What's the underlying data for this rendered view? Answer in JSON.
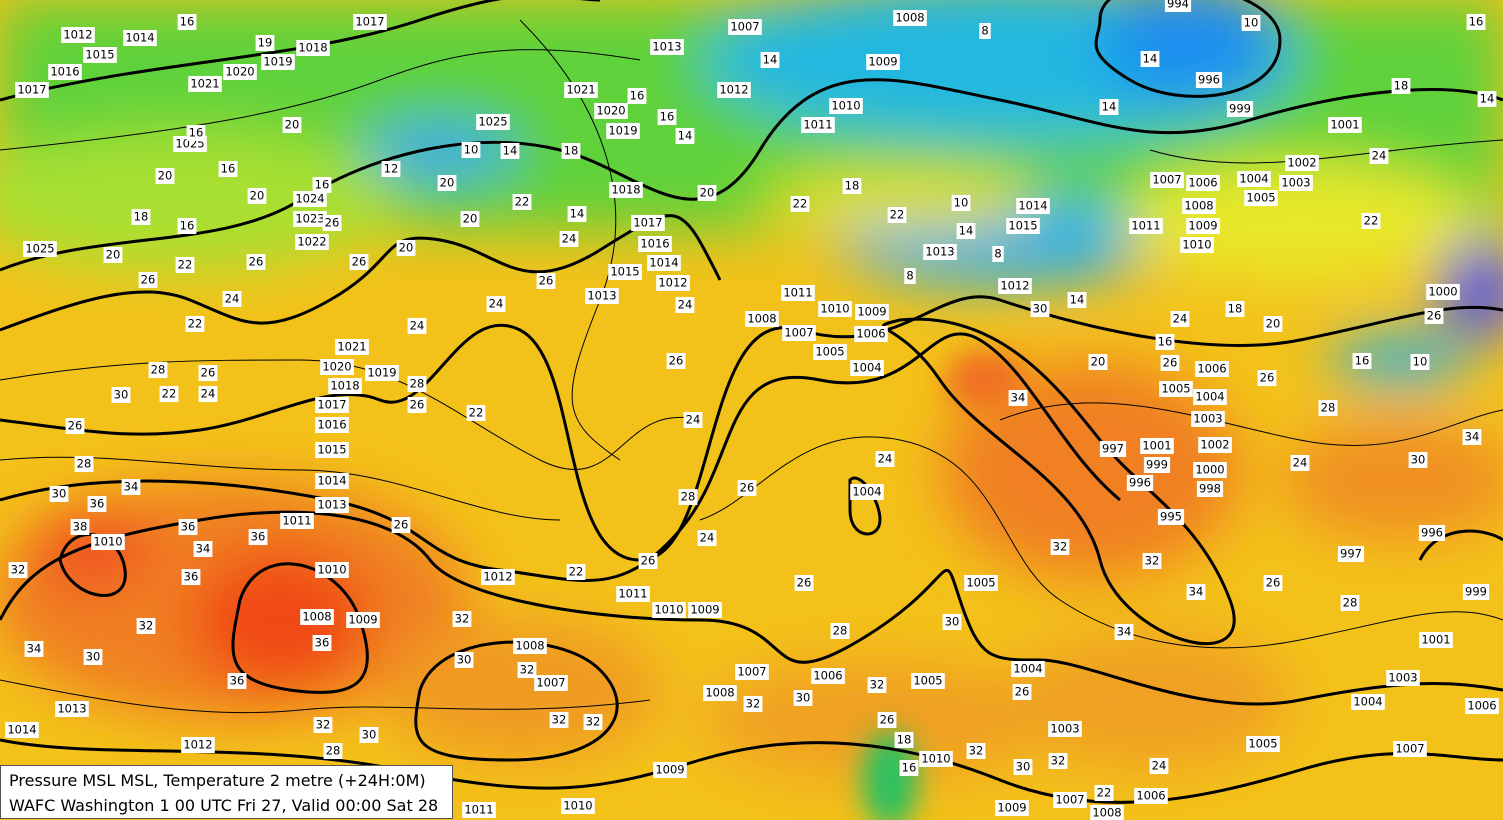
{
  "legend": {
    "line1": "Pressure MSL  MSL, Temperature  2 metre (+24H:0M)",
    "line2": "WAFC Washington 1 00 UTC Fri 27, Valid 00:00 Sat 28"
  },
  "pressure_labels": [
    1012,
    1014,
    1015,
    1016,
    1017,
    1017,
    1018,
    1019,
    1020,
    1021,
    1025,
    1024,
    1023,
    1022,
    1025,
    1025,
    1021,
    1020,
    1019,
    1018,
    1017,
    1016,
    1015,
    1014,
    1013,
    1013,
    1012,
    1012,
    1007,
    1008,
    1009,
    1010,
    1011,
    1011,
    1010,
    1009,
    1008,
    1007,
    1006,
    1005,
    1004,
    1013,
    1014,
    1015,
    1012,
    994,
    996,
    999,
    1001,
    1002,
    1003,
    1004,
    1005,
    1006,
    1007,
    1008,
    1009,
    1010,
    1011,
    1021,
    1020,
    1019,
    1018,
    1017,
    1016,
    1015,
    1014,
    1013,
    1011,
    1010,
    1010,
    1012,
    1011,
    1010,
    1009,
    1009,
    1008,
    1008,
    1007,
    1007,
    1008,
    1006,
    1005,
    1004,
    1003,
    1005,
    1004,
    1005,
    1006,
    1004,
    1003,
    1002,
    1001,
    1000,
    999,
    998,
    997,
    996,
    995,
    996,
    997,
    999,
    1001,
    1003,
    1004,
    1005,
    1006,
    1007,
    1006,
    1007,
    1008,
    1009,
    1010,
    1010,
    1011,
    1009,
    1012,
    1013,
    1014,
    1000
  ],
  "temperature_labels": [
    16,
    19,
    20,
    16,
    20,
    16,
    20,
    18,
    16,
    20,
    22,
    26,
    26,
    24,
    22,
    28,
    30,
    22,
    26,
    24,
    26,
    28,
    30,
    34,
    36,
    38,
    36,
    34,
    36,
    36,
    32,
    32,
    34,
    30,
    36,
    36,
    32,
    30,
    28,
    32,
    30,
    32,
    32,
    32,
    26,
    22,
    26,
    24,
    28,
    26,
    26,
    28,
    30,
    32,
    32,
    26,
    18,
    16,
    32,
    30,
    32,
    24,
    22,
    26,
    30,
    34,
    32,
    32,
    34,
    34,
    26,
    28,
    24,
    30,
    34,
    28,
    26,
    16,
    10,
    26,
    18,
    20,
    24,
    16,
    26,
    20,
    30,
    14,
    8,
    8,
    14,
    10,
    18,
    22,
    22,
    20,
    14,
    24,
    22,
    20,
    20,
    20,
    26,
    24,
    26,
    24,
    26,
    28,
    22,
    14,
    8,
    10,
    14,
    14,
    18,
    24,
    22,
    14,
    16,
    24,
    26,
    24,
    24,
    14,
    16,
    16,
    18,
    14,
    10,
    12,
    16,
    26
  ]
}
